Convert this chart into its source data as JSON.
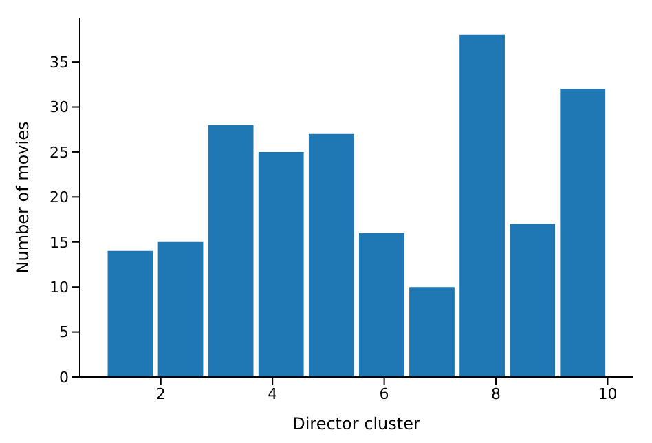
{
  "chart_data": {
    "type": "histogram",
    "xlabel": "Director cluster",
    "ylabel": "Number of movies",
    "bins": [
      1,
      1.9,
      2.8,
      3.7,
      4.6,
      5.5,
      6.4,
      7.3,
      8.2,
      9.1,
      10
    ],
    "values": [
      14,
      15,
      28,
      25,
      27,
      16,
      10,
      38,
      17,
      32
    ],
    "color": "#1f77b4",
    "xlim": [
      0.55,
      10.45
    ],
    "xticks": [
      2,
      4,
      6,
      8,
      10
    ],
    "ylim": [
      0,
      39.9
    ],
    "yticks": [
      0,
      5,
      10,
      15,
      20,
      25,
      30,
      35
    ],
    "grid": false,
    "legend": false
  }
}
